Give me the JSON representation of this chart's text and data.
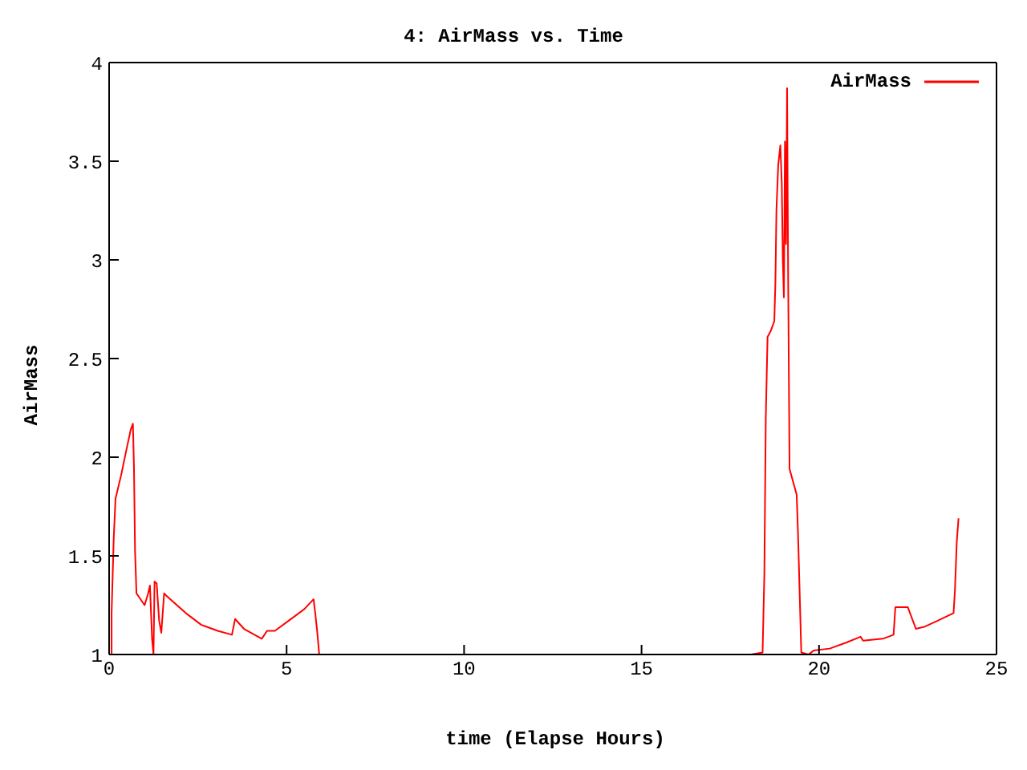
{
  "chart_data": {
    "type": "line",
    "title": "4: AirMass vs. Time",
    "xlabel": "time (Elapse Hours)",
    "ylabel": "AirMass",
    "xlim": [
      0,
      25
    ],
    "xticks": [
      0,
      5,
      10,
      15,
      20,
      25
    ],
    "ylim": [
      1,
      4
    ],
    "yticks": [
      1,
      1.5,
      2,
      2.5,
      3,
      3.5,
      4
    ],
    "legend": "top right",
    "series": [
      {
        "name": "AirMass",
        "color": "#ff0000",
        "x": [
          0.07,
          0.07,
          0.13,
          0.18,
          0.34,
          0.49,
          0.61,
          0.67,
          0.7,
          0.73,
          0.77,
          1.0,
          1.1,
          1.15,
          1.21,
          1.25,
          1.28,
          1.34,
          1.41,
          1.47,
          1.55,
          1.6,
          2.16,
          2.6,
          3.06,
          3.46,
          3.55,
          3.8,
          4.3,
          4.45,
          4.67,
          5.05,
          5.5,
          5.76,
          5.8,
          5.86,
          5.92,
          18.08,
          18.41,
          18.46,
          18.5,
          18.55,
          18.64,
          18.74,
          18.77,
          18.8,
          18.85,
          18.91,
          18.95,
          18.98,
          19.01,
          19.04,
          19.07,
          19.1,
          19.13,
          19.17,
          19.37,
          19.41,
          19.47,
          19.5,
          19.7,
          19.85,
          20.3,
          20.76,
          21.17,
          21.24,
          21.8,
          22.1,
          22.15,
          22.5,
          22.73,
          22.96,
          23.33,
          23.79,
          23.83,
          23.88,
          23.93
        ],
        "values": [
          1.0,
          1.21,
          1.59,
          1.79,
          1.91,
          2.04,
          2.14,
          2.17,
          1.95,
          1.53,
          1.31,
          1.25,
          1.31,
          1.35,
          1.08,
          1.0,
          1.37,
          1.36,
          1.17,
          1.11,
          1.31,
          1.3,
          1.21,
          1.15,
          1.12,
          1.1,
          1.18,
          1.13,
          1.08,
          1.12,
          1.12,
          1.17,
          1.23,
          1.28,
          1.22,
          1.12,
          1.0,
          1.0,
          1.01,
          1.41,
          2.2,
          2.61,
          2.64,
          2.69,
          2.88,
          3.25,
          3.48,
          3.58,
          3.39,
          3.0,
          2.81,
          3.6,
          3.08,
          3.87,
          2.91,
          1.94,
          1.81,
          1.6,
          1.21,
          1.01,
          1.0,
          1.02,
          1.03,
          1.06,
          1.09,
          1.07,
          1.08,
          1.1,
          1.24,
          1.24,
          1.13,
          1.14,
          1.17,
          1.21,
          1.33,
          1.57,
          1.69
        ]
      }
    ]
  }
}
